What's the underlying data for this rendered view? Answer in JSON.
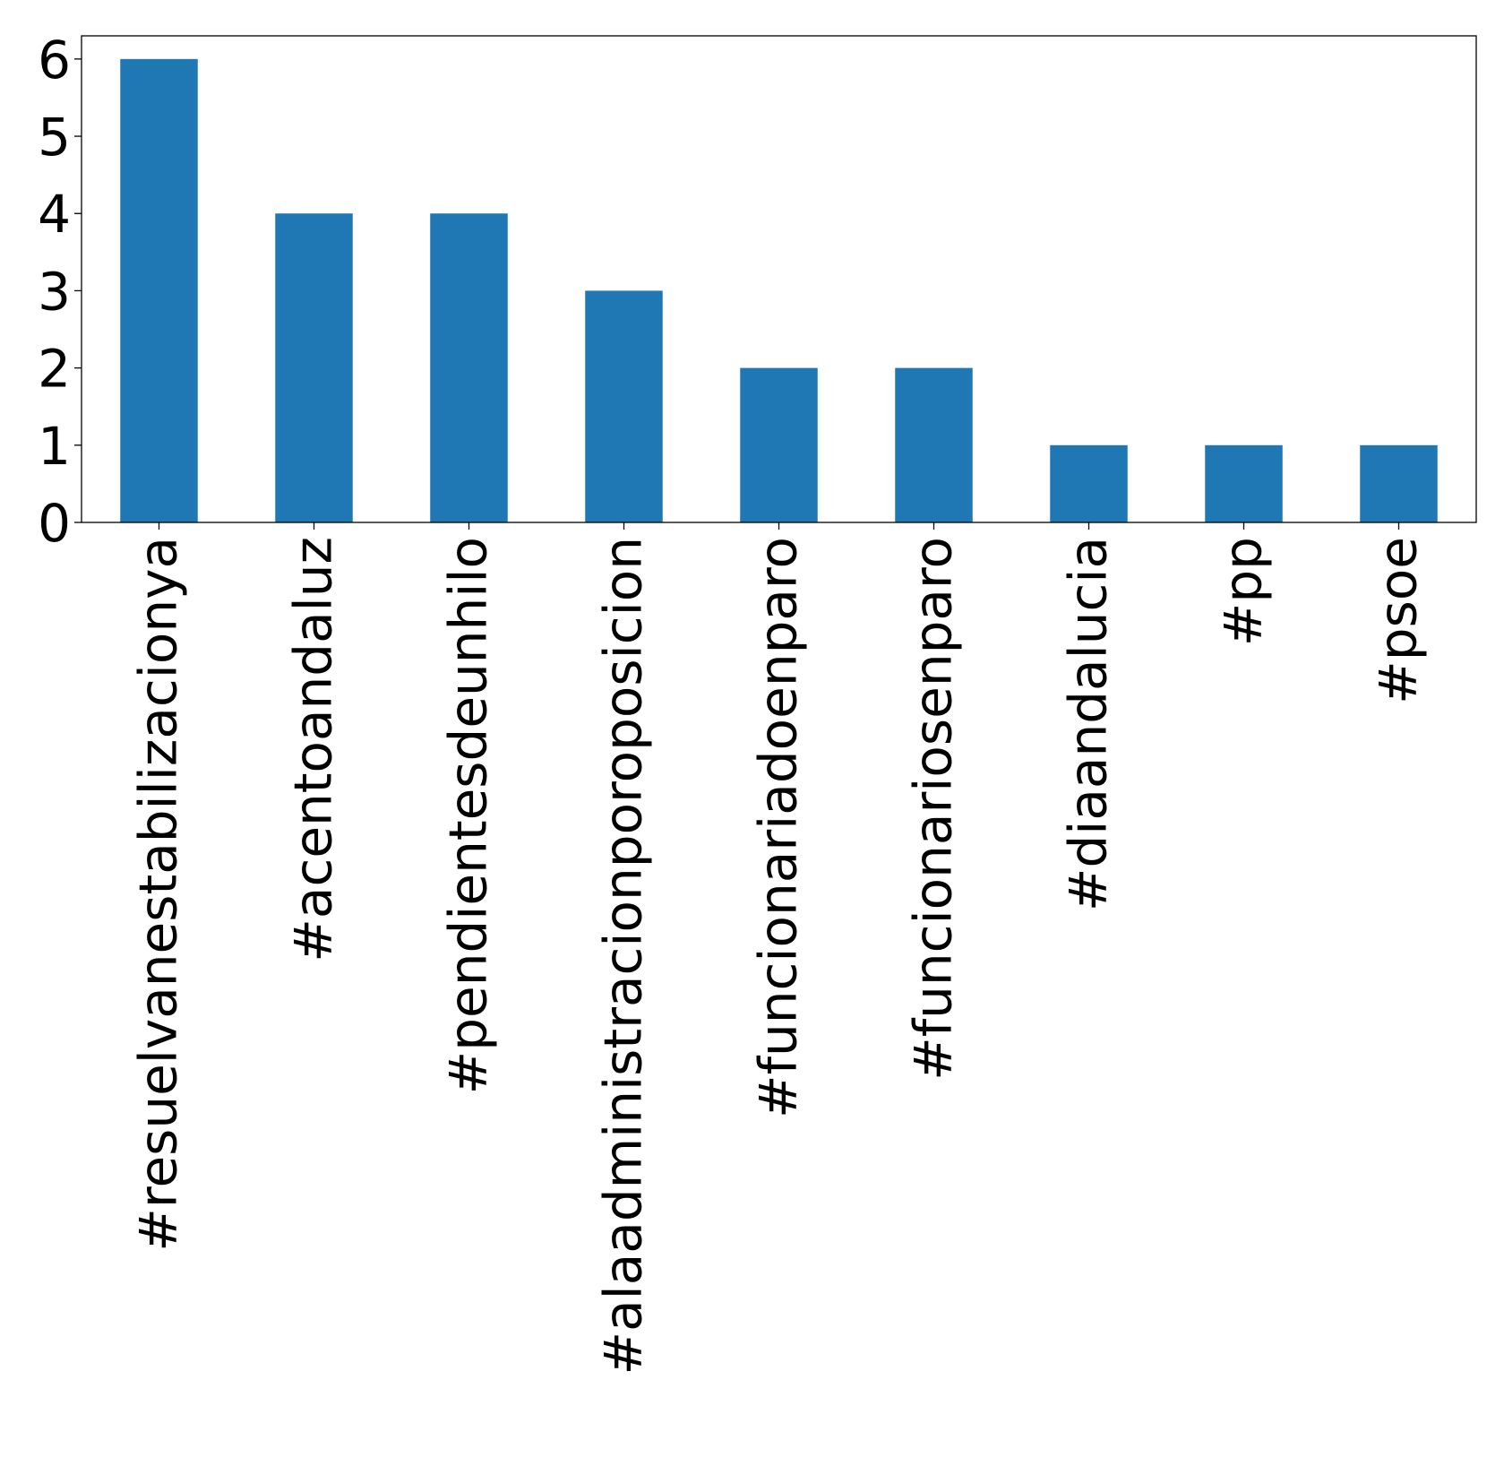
{
  "chart_data": {
    "type": "bar",
    "categories": [
      "#resuelvanestabilizacionya",
      "#acentoandaluz",
      "#pendientesdeunhilo",
      "#alaadministracionporoposicion",
      "#funcionariadoenparo",
      "#funcionariosenparo",
      "#diaandalucia",
      "#pp",
      "#psoe"
    ],
    "values": [
      6,
      4,
      4,
      3,
      2,
      2,
      1,
      1,
      1
    ],
    "title": "",
    "xlabel": "",
    "ylabel": "",
    "ylim": [
      0,
      6.3
    ],
    "yticks": [
      0,
      1,
      2,
      3,
      4,
      5,
      6
    ],
    "bar_color": "#1f77b4",
    "grid": false,
    "legend": "none"
  }
}
